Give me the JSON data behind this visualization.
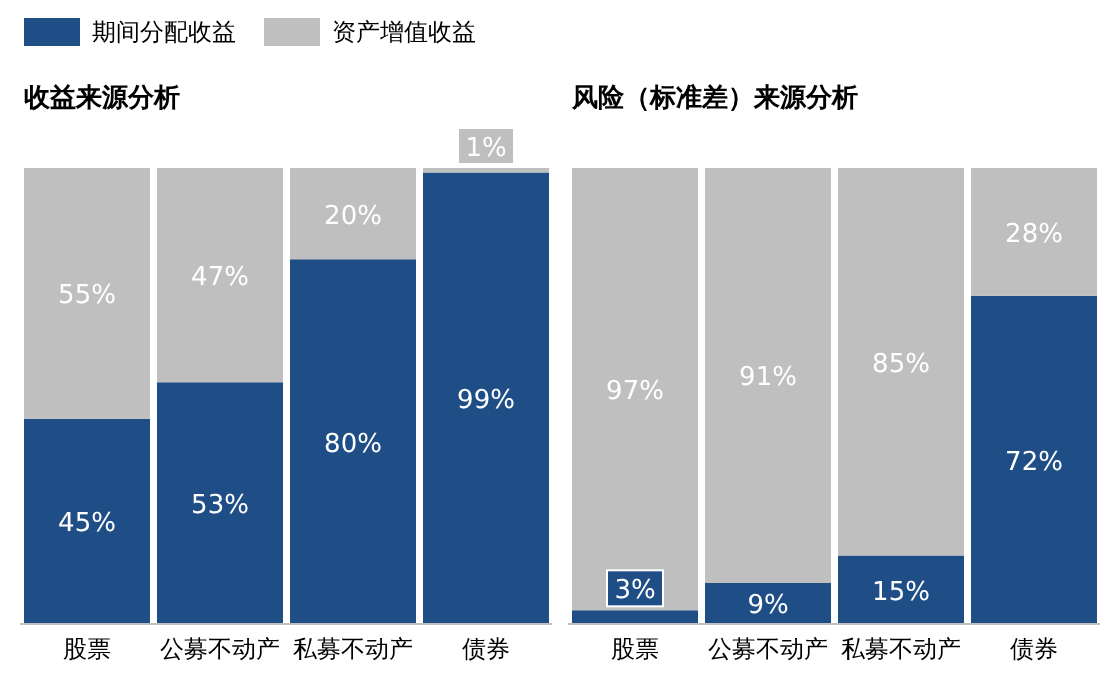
{
  "chart_data": [
    {
      "type": "bar",
      "title": "收益来源分析",
      "stacked": true,
      "legend": "top left",
      "tick_labels": "x",
      "ylim": [
        0,
        100
      ],
      "categories": [
        "股票",
        "公募不动产",
        "私募不动产",
        "债券"
      ],
      "series": [
        {
          "name": "期间分配收益",
          "color": "#1f4e87",
          "values": [
            45,
            53,
            80,
            99
          ],
          "value_labels": [
            "45%",
            "53%",
            "80%",
            "99%"
          ]
        },
        {
          "name": "资产增值收益",
          "color": "#bfbfbf",
          "values": [
            55,
            47,
            20,
            1
          ],
          "value_labels": [
            "55%",
            "47%",
            "20%",
            "1%"
          ]
        }
      ]
    },
    {
      "type": "bar",
      "title": "风险（标准差）来源分析",
      "stacked": true,
      "tick_labels": "x",
      "ylim": [
        0,
        100
      ],
      "categories": [
        "股票",
        "公募不动产",
        "私募不动产",
        "债券"
      ],
      "series": [
        {
          "color": "#1f4e87",
          "values": [
            3,
            9,
            15,
            72
          ],
          "value_labels": [
            "3%",
            "9%",
            "15%",
            "72%"
          ]
        },
        {
          "color": "#bfbfbf",
          "values": [
            97,
            91,
            85,
            28
          ],
          "value_labels": [
            "97%",
            "91%",
            "85%",
            "28%"
          ]
        }
      ]
    }
  ]
}
